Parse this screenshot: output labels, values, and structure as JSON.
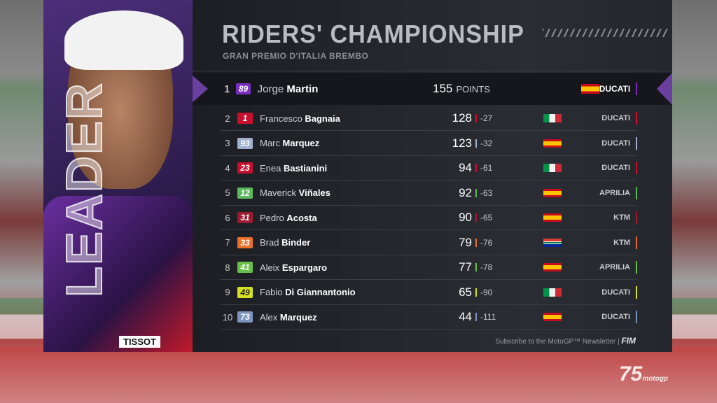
{
  "header": {
    "title": "RIDERS' CHAMPIONSHIP",
    "subtitle": "GRAN PREMIO D'ITALIA BREMBO"
  },
  "photo": {
    "side_text": "LEADER",
    "sponsor": "TISSOT"
  },
  "points_label": "POINTS",
  "riders": [
    {
      "pos": "1",
      "number": "89",
      "first": "Jorge",
      "last": "Martin",
      "points": "155",
      "gap": "",
      "country": "Spain",
      "team": "DUCATI",
      "color": "#7b2fbe"
    },
    {
      "pos": "2",
      "number": "1",
      "first": "Francesco",
      "last": "Bagnaia",
      "points": "128",
      "gap": "-27",
      "country": "Italy",
      "team": "DUCATI",
      "color": "#c8102e"
    },
    {
      "pos": "3",
      "number": "93",
      "first": "Marc",
      "last": "Marquez",
      "points": "123",
      "gap": "-32",
      "country": "Spain",
      "team": "DUCATI",
      "color": "#9fb1cc"
    },
    {
      "pos": "4",
      "number": "23",
      "first": "Enea",
      "last": "Bastianini",
      "points": "94",
      "gap": "-61",
      "country": "Italy",
      "team": "DUCATI",
      "color": "#c8102e"
    },
    {
      "pos": "5",
      "number": "12",
      "first": "Maverick",
      "last": "Viñales",
      "points": "92",
      "gap": "-63",
      "country": "Spain",
      "team": "APRILIA",
      "color": "#5cb85c"
    },
    {
      "pos": "6",
      "number": "31",
      "first": "Pedro",
      "last": "Acosta",
      "points": "90",
      "gap": "-65",
      "country": "Spain",
      "team": "KTM",
      "color": "#9b1b30"
    },
    {
      "pos": "7",
      "number": "33",
      "first": "Brad",
      "last": "Binder",
      "points": "79",
      "gap": "-76",
      "country": "South Africa",
      "team": "KTM",
      "color": "#e8702a"
    },
    {
      "pos": "8",
      "number": "41",
      "first": "Aleix",
      "last": "Espargaro",
      "points": "77",
      "gap": "-78",
      "country": "Spain",
      "team": "APRILIA",
      "color": "#6abf4b"
    },
    {
      "pos": "9",
      "number": "49",
      "first": "Fabio",
      "last": "Di Giannantonio",
      "points": "65",
      "gap": "-90",
      "country": "Italy",
      "team": "DUCATI",
      "color": "#d4e021"
    },
    {
      "pos": "10",
      "number": "73",
      "first": "Alex",
      "last": "Marquez",
      "points": "44",
      "gap": "-111",
      "country": "Spain",
      "team": "DUCATI",
      "color": "#7d96c0"
    }
  ],
  "footer": {
    "text": "Subscribe to the MotoGP™ Newsletter |",
    "logo": "FIM"
  },
  "corner_logo": {
    "text": "75",
    "sub": "motogp"
  }
}
